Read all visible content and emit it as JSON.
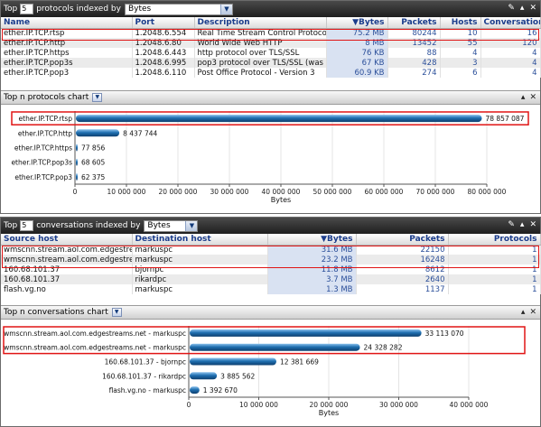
{
  "protocols_panel": {
    "top_label": "Top",
    "top_n": "5",
    "indexed_by_label": "protocols indexed by",
    "indexed_by_value": "Bytes",
    "columns": [
      "Name",
      "Port",
      "Description",
      "▼Bytes",
      "Packets",
      "Hosts",
      "Conversations"
    ],
    "rows": [
      {
        "name": "ether.IP.TCP.rtsp",
        "port": "1.2048.6.554",
        "description": "Real Time Stream Control Protoco",
        "bytes": "75.2 MB",
        "packets": "80244",
        "hosts": "10",
        "conversations": "16"
      },
      {
        "name": "ether.IP.TCP.http",
        "port": "1.2048.6.80",
        "description": "World Wide Web HTTP",
        "bytes": "8 MB",
        "packets": "13452",
        "hosts": "55",
        "conversations": "120"
      },
      {
        "name": "ether.IP.TCP.https",
        "port": "1.2048.6.443",
        "description": "http protocol over TLS/SSL",
        "bytes": "76 KB",
        "packets": "88",
        "hosts": "4",
        "conversations": "4"
      },
      {
        "name": "ether.IP.TCP.pop3s",
        "port": "1.2048.6.995",
        "description": "pop3 protocol over TLS/SSL (was",
        "bytes": "67 KB",
        "packets": "428",
        "hosts": "3",
        "conversations": "4"
      },
      {
        "name": "ether.IP.TCP.pop3",
        "port": "1.2048.6.110",
        "description": "Post Office Protocol - Version 3",
        "bytes": "60.9 KB",
        "packets": "274",
        "hosts": "6",
        "conversations": "4"
      }
    ],
    "chart_title": "Top n protocols chart"
  },
  "conversations_panel": {
    "top_label": "Top",
    "top_n": "5",
    "indexed_by_label": "conversations indexed by",
    "indexed_by_value": "Bytes",
    "columns": [
      "Source host",
      "Destination host",
      "▼Bytes",
      "Packets",
      "Protocols"
    ],
    "rows": [
      {
        "source": "wmscnn.stream.aol.com.edgestre",
        "dest": "markuspc",
        "bytes": "31.6 MB",
        "packets": "22150",
        "protocols": "1"
      },
      {
        "source": "wmscnn.stream.aol.com.edgestre",
        "dest": "markuspc",
        "bytes": "23.2 MB",
        "packets": "16248",
        "protocols": "1"
      },
      {
        "source": "160.68.101.37",
        "dest": "bjornpc",
        "bytes": "11.8 MB",
        "packets": "8612",
        "protocols": "1"
      },
      {
        "source": "160.68.101.37",
        "dest": "rikardpc",
        "bytes": "3.7 MB",
        "packets": "2640",
        "protocols": "1"
      },
      {
        "source": "flash.vg.no",
        "dest": "markuspc",
        "bytes": "1.3 MB",
        "packets": "1137",
        "protocols": "1"
      }
    ],
    "chart_title": "Top n conversations chart"
  },
  "colors": {
    "bar": "#1f6fb0",
    "highlight": "#e01515",
    "header_text": "#1b3d8c"
  },
  "chart_data": [
    {
      "type": "bar",
      "orientation": "horizontal",
      "categories": [
        "ether.IP.TCP.rtsp",
        "ether.IP.TCP.http",
        "ether.IP.TCP.https",
        "ether.IP.TCP.pop3s",
        "ether.IP.TCP.pop3"
      ],
      "values": [
        78857087,
        8437744,
        77856,
        68605,
        62375
      ],
      "value_labels": [
        "78 857 087",
        "8 437 744",
        "77 856",
        "68 605",
        "62 375"
      ],
      "xlabel": "Bytes",
      "xlim": [
        0,
        80000000
      ],
      "xticks": [
        0,
        10000000,
        20000000,
        30000000,
        40000000,
        50000000,
        60000000,
        70000000,
        80000000
      ],
      "xtick_labels": [
        "0",
        "10 000 000",
        "20 000 000",
        "30 000 000",
        "40 000 000",
        "50 000 000",
        "60 000 000",
        "70 000 000",
        "80 000 000"
      ]
    },
    {
      "type": "bar",
      "orientation": "horizontal",
      "categories": [
        "wmscnn.stream.aol.com.edgestreams.net - markuspc",
        "wmscnn.stream.aol.com.edgestreams.net - markuspc",
        "160.68.101.37 - bjornpc",
        "160.68.101.37 - rikardpc",
        "flash.vg.no - markuspc"
      ],
      "values": [
        33113070,
        24328282,
        12381669,
        3885562,
        1392670
      ],
      "value_labels": [
        "33 113 070",
        "24 328 282",
        "12 381 669",
        "3 885 562",
        "1 392 670"
      ],
      "xlabel": "Bytes",
      "xlim": [
        0,
        40000000
      ],
      "xticks": [
        0,
        10000000,
        20000000,
        30000000,
        40000000
      ],
      "xtick_labels": [
        "0",
        "10 000 000",
        "20 000 000",
        "30 000 000",
        "40 000 000"
      ]
    }
  ]
}
